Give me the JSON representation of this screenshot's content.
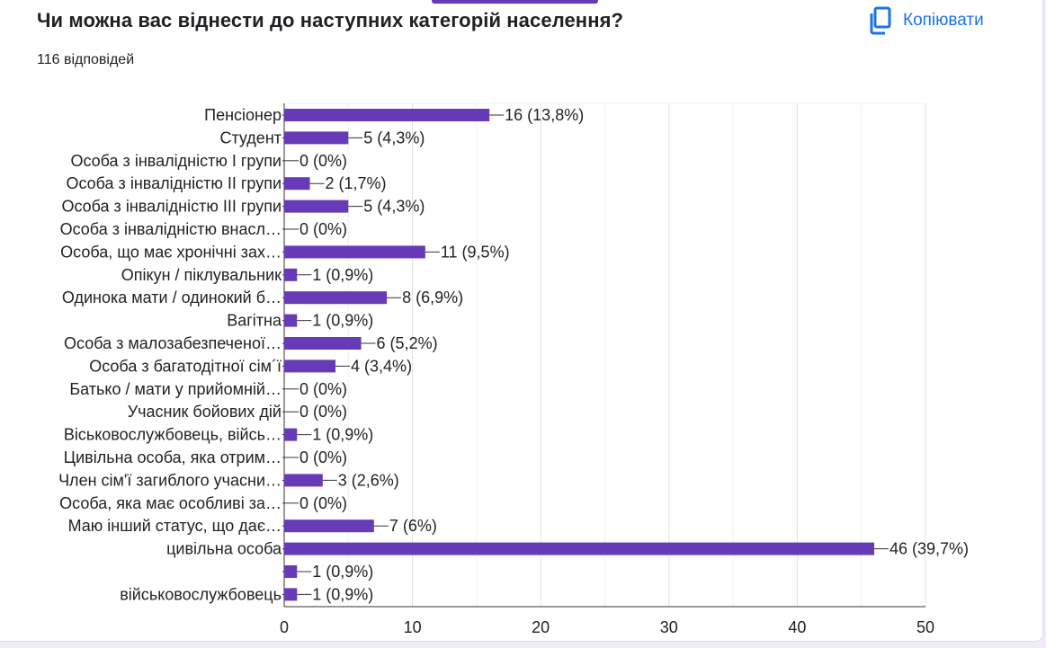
{
  "header": {
    "title": "Чи можна вас віднести до наступних категорій населення?",
    "response_count": "116 відповідей",
    "copy_label": "Копіювати",
    "copy_icon": "copy-icon"
  },
  "colors": {
    "bar": "#673ab7",
    "accent": "#1a73e8",
    "grid": "#e0e0e0",
    "axis": "#333333"
  },
  "chart_data": {
    "type": "bar",
    "orientation": "horizontal",
    "categories": [
      "Пенсіонер",
      "Студент",
      "Особа з інвалідністю І групи",
      "Особа з інвалідністю ІІ групи",
      "Особа з інвалідністю ІІІ групи",
      "Особа з інвалідністю внасл…",
      "Особа, що має хронічні зах…",
      "Опікун / піклувальник",
      "Одинока мати / одинокий б…",
      "Вагітна",
      "Особа з малозабезпеченої…",
      "Особа з багатодітної сім´ї",
      "Батько / мати у прийомній…",
      "Учасник бойових дій",
      "Віськовослужбовець, війсь…",
      "Цивільна особа, яка отрим…",
      "Член сім'ї загиблого учасни…",
      "Особа, яка має особливі за…",
      "Маю інший статус, що дає…",
      "цивільна особа",
      "",
      "військовослужбовець"
    ],
    "values": [
      16,
      5,
      0,
      2,
      5,
      0,
      11,
      1,
      8,
      1,
      6,
      4,
      0,
      0,
      1,
      0,
      3,
      0,
      7,
      46,
      1,
      1
    ],
    "value_labels": [
      "16 (13,8%)",
      "5 (4,3%)",
      "0 (0%)",
      "2 (1,7%)",
      "5 (4,3%)",
      "0 (0%)",
      "11 (9,5%)",
      "1 (0,9%)",
      "8 (6,9%)",
      "1 (0,9%)",
      "6 (5,2%)",
      "4 (3,4%)",
      "0 (0%)",
      "0 (0%)",
      "1 (0,9%)",
      "0 (0%)",
      "3 (2,6%)",
      "0 (0%)",
      "7 (6%)",
      "46 (39,7%)",
      "1 (0,9%)",
      "1 (0,9%)"
    ],
    "xlim": [
      0,
      50
    ],
    "xticks": [
      0,
      10,
      20,
      30,
      40,
      50
    ],
    "grid": true
  }
}
